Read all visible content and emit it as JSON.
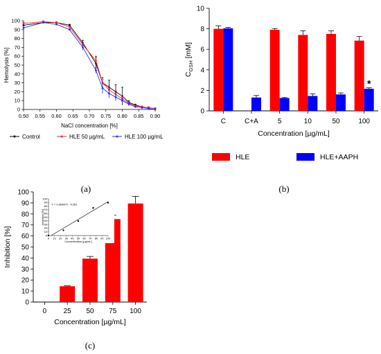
{
  "panel_labels": {
    "a": "(a)",
    "b": "(b)",
    "c": "(c)"
  },
  "chart_data": [
    {
      "type": "line",
      "panel": "(a)",
      "xlabel": "NaCl concentration [%]",
      "ylabel": "Hemolysis [%]",
      "xlim": [
        0.5,
        0.9
      ],
      "ylim": [
        0,
        100
      ],
      "xticks": [
        "0.50",
        "0.55",
        "0.60",
        "0.65",
        "0.70",
        "0.75",
        "0.80",
        "0.85",
        "0.90"
      ],
      "yticks": [
        "0",
        "10",
        "20",
        "30",
        "40",
        "50",
        "60",
        "70",
        "80",
        "90",
        "100"
      ],
      "x": [
        0.5,
        0.56,
        0.6,
        0.64,
        0.68,
        0.72,
        0.74,
        0.76,
        0.78,
        0.8,
        0.82,
        0.84,
        0.86,
        0.88,
        0.9
      ],
      "legend_position": "bottom",
      "series": [
        {
          "name": "Control",
          "color": "#000000",
          "values": [
            95,
            98,
            98,
            95,
            75,
            52,
            30,
            25,
            20,
            15,
            8,
            5,
            3,
            2,
            1
          ],
          "errors": [
            3,
            1,
            1,
            1,
            3,
            8,
            6,
            8,
            8,
            10,
            2,
            1,
            1,
            1,
            1
          ]
        },
        {
          "name": "HLE 50 µg/mL",
          "color": "#ff2a2a",
          "values": [
            97,
            99,
            98,
            93,
            73,
            55,
            30,
            22,
            17,
            12,
            7,
            4,
            3,
            2,
            1
          ],
          "errors": [
            1,
            1,
            1,
            1,
            2,
            3,
            4,
            5,
            4,
            3,
            2,
            1,
            1,
            1,
            1
          ]
        },
        {
          "name": "HLE 100 µg/mL",
          "color": "#2a2aff",
          "values": [
            92,
            98,
            96,
            90,
            70,
            44,
            24,
            18,
            14,
            10,
            6,
            3,
            2,
            1,
            0
          ],
          "errors": [
            2,
            1,
            1,
            1,
            3,
            3,
            6,
            5,
            4,
            3,
            2,
            1,
            1,
            1,
            1
          ]
        }
      ]
    },
    {
      "type": "bar",
      "panel": "(b)",
      "ylabel_main": "C",
      "ylabel_sub": "GSH",
      "ylabel_unit": " [mM]",
      "xlabel": "Concentration [µg/mL]",
      "categories": [
        "C",
        "C+A",
        "5",
        "10",
        "50",
        "100"
      ],
      "ylim": [
        0,
        10
      ],
      "yticks": [
        "0",
        "2",
        "4",
        "6",
        "8",
        "10"
      ],
      "legend_position": "bottom",
      "series": [
        {
          "name": "HLE",
          "color": "#ff0000",
          "values": [
            8.0,
            null,
            7.9,
            7.4,
            7.5,
            6.85
          ],
          "errors": [
            0.3,
            null,
            0.12,
            0.4,
            0.3,
            0.4
          ]
        },
        {
          "name": "HLE+AAPH",
          "color": "#0000ff",
          "values": [
            8.05,
            1.3,
            1.25,
            1.45,
            1.6,
            2.15
          ],
          "errors": [
            0.1,
            0.2,
            0.05,
            0.2,
            0.15,
            0.1
          ]
        }
      ],
      "annotation": "*"
    },
    {
      "type": "bar",
      "panel": "(c)",
      "ylabel": "Inhibition [%]",
      "xlabel": "Concentration [µg/mL]",
      "categories": [
        "0",
        "25",
        "50",
        "75",
        "100"
      ],
      "ylim": [
        0,
        100
      ],
      "yticks": [
        "0",
        "10",
        "20",
        "30",
        "40",
        "50",
        "60",
        "70",
        "80",
        "90",
        "100"
      ],
      "series": [
        {
          "name": "",
          "color": "#ff0000",
          "values": [
            0,
            14.3,
            39.4,
            75.3,
            89.5
          ],
          "errors": [
            0,
            0.4,
            2.0,
            3.5,
            6.5
          ]
        }
      ],
      "inset": {
        "type": "scatter",
        "equation": "Y = 0.9646*X - 4.261",
        "xlabel": "Concentration [µg/mL]",
        "ylabel": "Inhibition [%]",
        "xlim": [
          0,
          100
        ],
        "ylim": [
          0,
          100
        ],
        "xticks": [
          "0",
          "10",
          "20",
          "30",
          "40",
          "50",
          "60",
          "70",
          "80",
          "90",
          "100"
        ],
        "yticks": [
          "0",
          "10",
          "20",
          "30",
          "40",
          "50",
          "60",
          "70",
          "80",
          "90",
          "100"
        ],
        "x": [
          0,
          25,
          50,
          75,
          100
        ],
        "y": [
          0,
          14.3,
          39.4,
          75.3,
          89.5
        ],
        "fit": {
          "slope": 0.9646,
          "intercept": -4.261
        }
      }
    }
  ]
}
